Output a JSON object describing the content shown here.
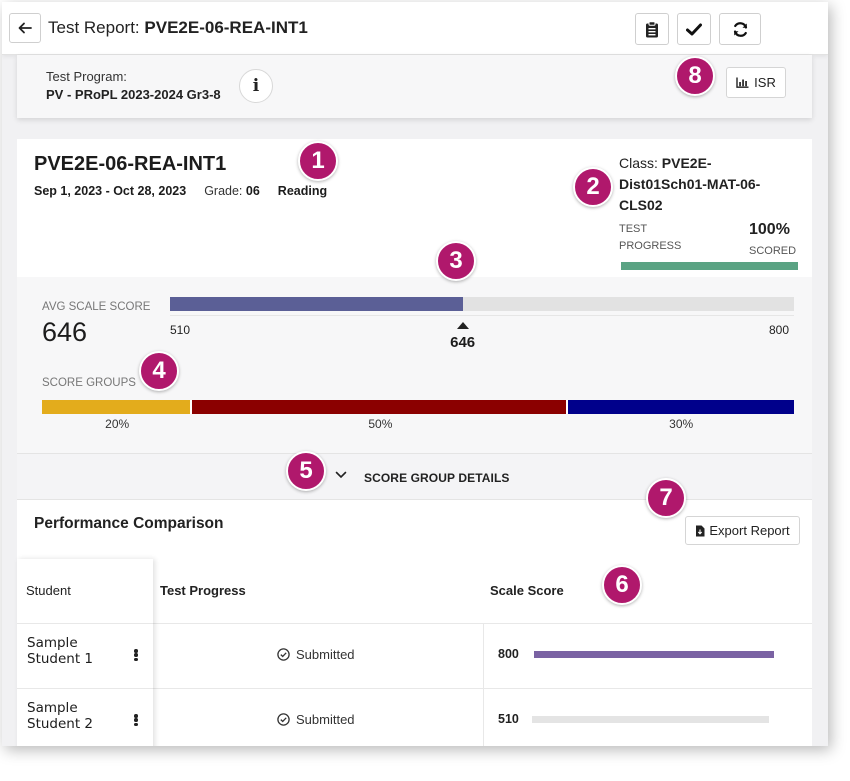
{
  "header": {
    "title_prefix": "Test Report:",
    "title_value": "PVE2E-06-REA-INT1"
  },
  "program": {
    "label": "Test Program:",
    "value": "PV - PRoPL 2023-2024 Gr3-8",
    "info_icon": "i",
    "isr_label": "ISR"
  },
  "report": {
    "name": "PVE2E-06-REA-INT1",
    "dates": "Sep 1, 2023 - Oct 28, 2023",
    "grade_label": "Grade:",
    "grade_value": "06",
    "subject": "Reading",
    "class_label": "Class:",
    "class_line1": "PVE2E-",
    "class_line2": "Dist01Sch01-MAT-06-",
    "class_line3": "CLS02",
    "progress_label_1": "TEST",
    "progress_label_2": "PROGRESS",
    "progress_pct": "100%",
    "progress_value": 1.0,
    "scored_label": "SCORED",
    "progress_color": "#5aa383"
  },
  "score": {
    "avg_label": "AVG SCALE SCORE",
    "avg_value": "646",
    "min": "510",
    "max": "800",
    "marker_value": "646",
    "scale_min_num": 510,
    "scale_max_num": 800,
    "scale_value_num": 646,
    "bar_color": "#5b5f96",
    "groups_label": "SCORE GROUPS",
    "groups": [
      {
        "pct": "20%",
        "value": 0.2,
        "color": "#e3ac1c"
      },
      {
        "pct": "50%",
        "value": 0.5,
        "color": "#8b0000"
      },
      {
        "pct": "30%",
        "value": 0.3,
        "color": "#00008b"
      }
    ]
  },
  "details": {
    "label": "SCORE GROUP DETAILS"
  },
  "performance": {
    "title": "Performance Comparison",
    "export_label": "Export Report",
    "columns": [
      "Student",
      "Test Progress",
      "Scale Score"
    ],
    "rows": [
      {
        "name_line1": "Sample",
        "name_line2": "Student 1",
        "status": "Submitted",
        "score": "800",
        "score_fill": 1.0,
        "color": "#7a62a3"
      },
      {
        "name_line1": "Sample",
        "name_line2": "Student 2",
        "status": "Submitted",
        "score": "510",
        "score_fill": 0.0,
        "color": "#e4e4e4"
      }
    ]
  },
  "callouts": [
    "1",
    "2",
    "3",
    "4",
    "5",
    "6",
    "7",
    "8"
  ]
}
